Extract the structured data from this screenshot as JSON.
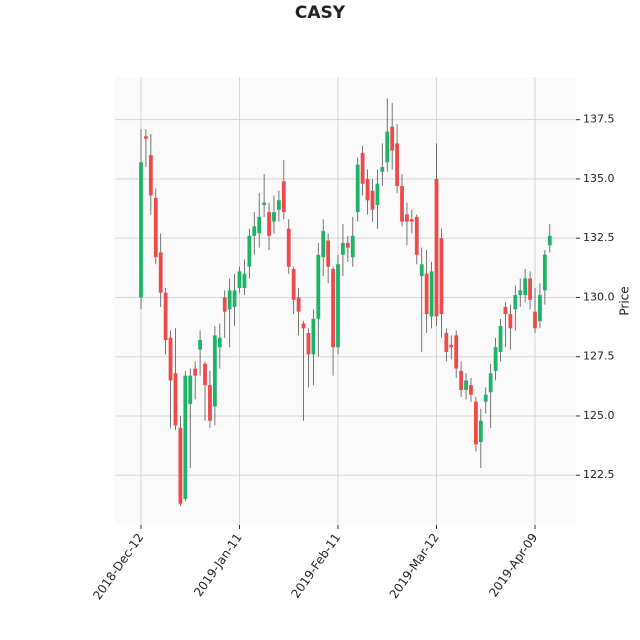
{
  "chart_data": {
    "type": "candlestick",
    "title": "CASY",
    "y_label": "Price",
    "categories": [
      "2018-Dec-12",
      null,
      null,
      null,
      null,
      null,
      null,
      null,
      null,
      null,
      null,
      null,
      null,
      null,
      null,
      null,
      null,
      null,
      null,
      null,
      "2019-Jan-11",
      null,
      null,
      null,
      null,
      null,
      null,
      null,
      null,
      null,
      null,
      null,
      null,
      null,
      null,
      null,
      null,
      null,
      null,
      null,
      "2019-Feb-11",
      null,
      null,
      null,
      null,
      null,
      null,
      null,
      null,
      null,
      null,
      null,
      null,
      null,
      null,
      null,
      null,
      null,
      null,
      null,
      "2019-Mar-12",
      null,
      null,
      null,
      null,
      null,
      null,
      null,
      null,
      null,
      null,
      null,
      null,
      null,
      null,
      null,
      null,
      null,
      null,
      null,
      "2019-Apr-09",
      null,
      null,
      null
    ],
    "open": [
      130.0,
      136.8,
      136.0,
      134.2,
      131.9,
      130.2,
      128.3,
      126.8,
      124.5,
      121.5,
      125.5,
      127.0,
      127.8,
      127.2,
      126.3,
      125.4,
      127.9,
      130.0,
      129.5,
      129.6,
      130.4,
      130.4,
      131.3,
      132.6,
      132.7,
      133.9,
      133.6,
      133.2,
      133.7,
      134.9,
      132.9,
      131.2,
      130.0,
      128.9,
      128.5,
      127.6,
      129.1,
      131.7,
      132.4,
      131.2,
      127.9,
      131.8,
      132.3,
      131.7,
      133.6,
      136.1,
      135.0,
      134.5,
      133.9,
      135.3,
      135.7,
      137.2,
      136.5,
      134.7,
      133.5,
      133.3,
      133.4,
      130.9,
      131.0,
      129.2,
      135.0,
      132.5,
      128.5,
      128.0,
      128.4,
      126.9,
      126.1,
      126.3,
      125.6,
      123.9,
      125.6,
      126.0,
      126.9,
      127.7,
      129.6,
      129.3,
      129.5,
      130.1,
      130.1,
      130.8,
      129.4,
      129.0,
      130.3,
      132.2
    ],
    "high": [
      137.1,
      137.1,
      136.9,
      134.6,
      132.7,
      130.4,
      128.6,
      128.7,
      125.0,
      126.9,
      127.0,
      127.3,
      128.6,
      127.3,
      126.9,
      128.8,
      128.9,
      130.3,
      130.8,
      131.0,
      131.3,
      131.6,
      132.9,
      133.6,
      134.4,
      135.2,
      134.0,
      134.3,
      134.5,
      135.8,
      133.3,
      131.3,
      130.4,
      129.0,
      128.7,
      129.5,
      132.3,
      133.3,
      132.7,
      131.3,
      131.8,
      133.1,
      132.6,
      133.4,
      135.9,
      136.4,
      135.4,
      135.0,
      135.4,
      136.5,
      138.4,
      138.2,
      137.3,
      135.2,
      134.0,
      133.7,
      133.5,
      132.1,
      132.0,
      131.5,
      136.5,
      132.9,
      128.7,
      128.4,
      128.6,
      127.3,
      126.8,
      126.6,
      125.8,
      125.3,
      126.2,
      127.2,
      128.3,
      129.1,
      129.8,
      129.7,
      130.5,
      130.8,
      131.2,
      131.1,
      130.4,
      130.6,
      132.0,
      133.1
    ],
    "low": [
      129.5,
      135.5,
      133.5,
      131.4,
      129.6,
      127.6,
      124.5,
      124.4,
      121.2,
      121.4,
      122.8,
      125.7,
      126.7,
      124.8,
      124.5,
      124.6,
      127.0,
      128.3,
      127.9,
      128.8,
      130.2,
      130.1,
      130.8,
      131.8,
      132.1,
      133.4,
      132.0,
      132.7,
      133.2,
      133.3,
      131.0,
      129.3,
      128.4,
      124.8,
      126.2,
      126.3,
      127.5,
      130.9,
      130.6,
      126.7,
      127.6,
      130.9,
      131.5,
      131.3,
      133.2,
      134.3,
      133.5,
      133.2,
      132.9,
      134.7,
      135.3,
      135.4,
      134.4,
      133.0,
      132.2,
      132.7,
      131.4,
      127.7,
      128.5,
      128.7,
      128.8,
      128.3,
      127.3,
      127.4,
      126.6,
      125.8,
      125.7,
      125.6,
      123.5,
      122.8,
      125.1,
      124.5,
      126.5,
      127.3,
      127.9,
      127.8,
      128.6,
      129.6,
      129.8,
      129.5,
      128.5,
      128.7,
      129.7,
      131.9
    ],
    "close": [
      135.7,
      136.7,
      134.3,
      131.7,
      130.2,
      128.2,
      126.5,
      124.6,
      121.3,
      126.7,
      126.7,
      126.7,
      128.2,
      126.3,
      124.8,
      128.4,
      128.3,
      129.4,
      130.3,
      130.3,
      131.1,
      131.0,
      132.6,
      133.0,
      133.4,
      134.0,
      132.6,
      133.6,
      134.1,
      133.6,
      131.3,
      129.9,
      129.4,
      128.7,
      127.6,
      129.1,
      131.8,
      132.8,
      131.3,
      127.9,
      131.4,
      132.3,
      132.1,
      132.6,
      135.6,
      134.8,
      134.1,
      133.7,
      134.8,
      135.5,
      137.0,
      136.2,
      134.7,
      133.2,
      133.2,
      133.2,
      131.8,
      131.4,
      129.3,
      131.1,
      129.2,
      129.3,
      127.7,
      127.9,
      127.0,
      126.1,
      126.5,
      125.9,
      123.8,
      124.8,
      125.9,
      126.8,
      127.9,
      128.8,
      129.3,
      128.7,
      130.1,
      130.3,
      130.8,
      129.9,
      128.7,
      130.1,
      131.8,
      132.6
    ],
    "up_color": "#1db46a",
    "down_color": "#ef4a4a",
    "ylim": [
      120.4,
      139.3
    ],
    "yticks": [
      122.5,
      {
        "value": 125,
        "label": "125.0"
      },
      127.5,
      {
        "value": 130,
        "label": "130.0"
      },
      132.5,
      {
        "value": 135,
        "label": "135.0"
      },
      137.5
    ],
    "grid": true
  }
}
